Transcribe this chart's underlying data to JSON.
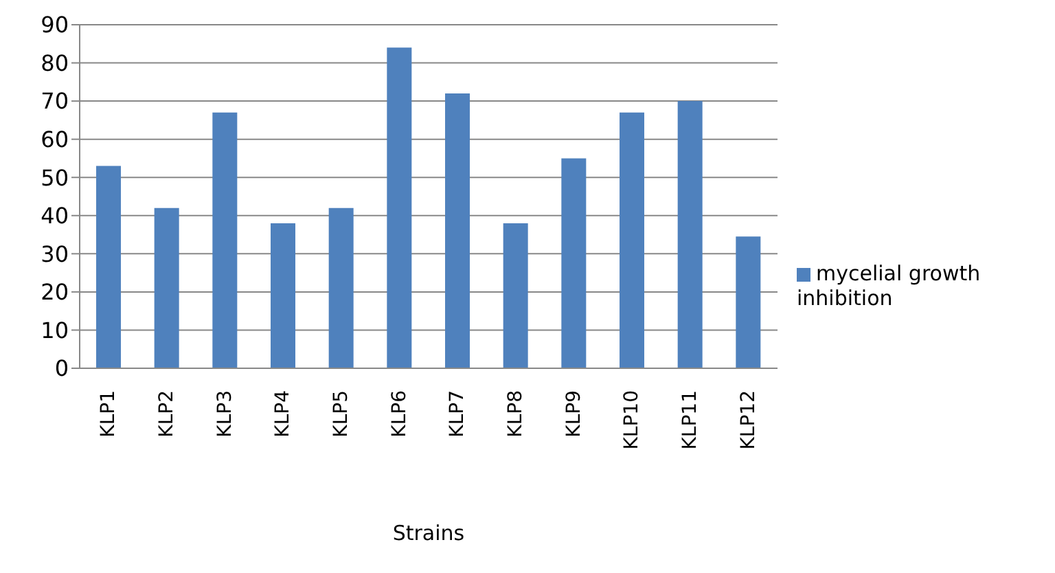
{
  "chart_data": {
    "type": "bar",
    "xlabel": "Strains",
    "categories": [
      "KLP1",
      "KLP2",
      "KLP3",
      "KLP4",
      "KLP5",
      "KLP6",
      "KLP7",
      "KLP8",
      "KLP9",
      "KLP10",
      "KLP11",
      "KLP12"
    ],
    "series": [
      {
        "name": "mycelial growth inhibition",
        "color": "#4f81bd",
        "values": [
          53,
          42,
          67,
          38,
          42,
          84,
          72,
          38,
          55,
          67,
          70,
          34.5
        ]
      }
    ],
    "ylim": [
      0,
      90
    ],
    "yticks": [
      0,
      10,
      20,
      30,
      40,
      50,
      60,
      70,
      80,
      90
    ],
    "grid": "y",
    "legend": "right"
  }
}
